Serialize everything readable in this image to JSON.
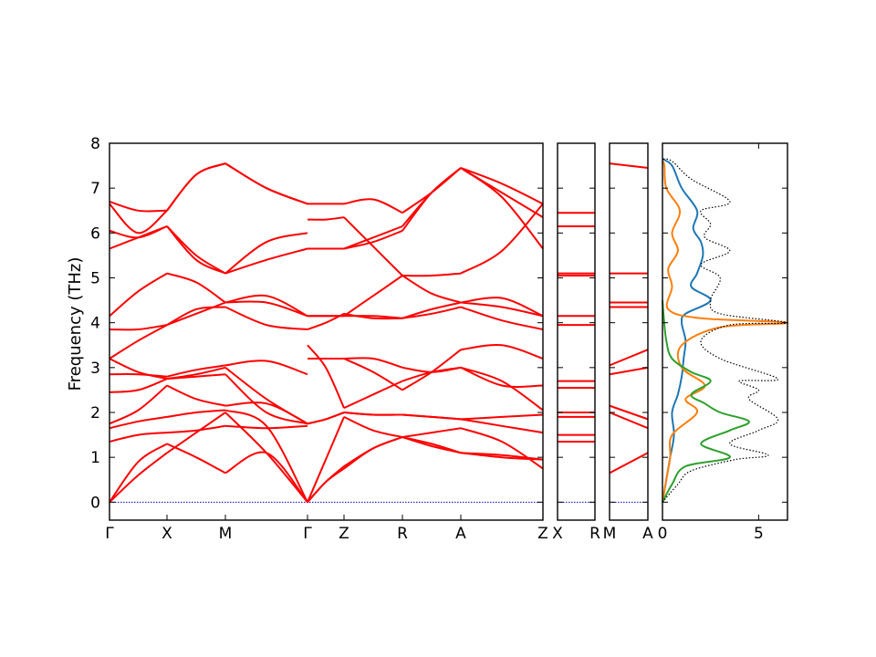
{
  "chart_data": {
    "type": "line",
    "ylabel": "Frequency (THz)",
    "ylim": [
      -0.4,
      8
    ],
    "yticks": [
      "0",
      "1",
      "2",
      "3",
      "4",
      "5",
      "6",
      "7",
      "8"
    ],
    "grid": false,
    "band_color": "#ff0000",
    "zero_line_color": "#0000cc",
    "panels": [
      {
        "name": "main-path",
        "xlabels": [
          "Γ",
          "X",
          "M",
          "Γ",
          "Z",
          "R",
          "A",
          "Z"
        ],
        "segments": [
          {
            "from": "Γ",
            "to": "X",
            "bands": [
              [
                0,
                0.9,
                1.3
              ],
              [
                0,
                0.6,
                1.1
              ],
              [
                1.35,
                1.5,
                1.55
              ],
              [
                1.65,
                1.8,
                1.9
              ],
              [
                1.75,
                2.05,
                2.6
              ],
              [
                2.45,
                2.5,
                2.75
              ],
              [
                2.85,
                2.85,
                2.8
              ],
              [
                3.2,
                2.9,
                2.75
              ],
              [
                3.2,
                3.6,
                3.95
              ],
              [
                3.85,
                3.85,
                3.95
              ],
              [
                4.15,
                4.7,
                5.1
              ],
              [
                5.65,
                5.9,
                6.15
              ],
              [
                6.05,
                5.9,
                6.15
              ],
              [
                6.65,
                6.0,
                6.5
              ],
              [
                6.7,
                6.5,
                6.5
              ]
            ]
          },
          {
            "from": "X",
            "to": "M",
            "bands": [
              [
                1.3,
                1.0,
                0.65
              ],
              [
                1.1,
                1.55,
                2.0
              ],
              [
                1.55,
                1.6,
                1.7
              ],
              [
                1.9,
                2.0,
                2.05
              ],
              [
                2.6,
                2.3,
                2.15
              ],
              [
                2.75,
                2.8,
                2.85
              ],
              [
                2.8,
                2.95,
                3.05
              ],
              [
                2.75,
                2.85,
                3.0
              ],
              [
                3.95,
                4.3,
                4.35
              ],
              [
                3.95,
                4.2,
                4.45
              ],
              [
                5.1,
                4.9,
                4.45
              ],
              [
                6.15,
                5.4,
                5.1
              ],
              [
                6.15,
                5.5,
                5.1
              ],
              [
                6.5,
                7.3,
                7.55
              ],
              [
                6.5,
                7.3,
                7.55
              ]
            ]
          },
          {
            "from": "M",
            "to": "Γ",
            "bands": [
              [
                0.65,
                1.1,
                0
              ],
              [
                2.0,
                1.1,
                0
              ],
              [
                1.7,
                1.65,
                1.7
              ],
              [
                2.05,
                1.7,
                0
              ],
              [
                2.15,
                2.2,
                1.75
              ],
              [
                2.85,
                2.0,
                1.75
              ],
              [
                3.05,
                3.15,
                2.85
              ],
              [
                3.0,
                2.3,
                1.75
              ],
              [
                4.35,
                3.95,
                3.85
              ],
              [
                4.45,
                4.45,
                4.15
              ],
              [
                4.45,
                4.6,
                4.15
              ],
              [
                5.1,
                5.8,
                6.0
              ],
              [
                5.1,
                5.4,
                5.65
              ],
              [
                7.55,
                7.0,
                6.65
              ],
              [
                7.55,
                7.0,
                6.65
              ]
            ]
          },
          {
            "from": "Γ",
            "to": "Z",
            "bands": [
              [
                0,
                0.45,
                0.75
              ],
              [
                0,
                0.45,
                0.8
              ],
              [
                0,
                0.95,
                1.9
              ],
              [
                1.75,
                1.85,
                2.0
              ],
              [
                1.75,
                1.85,
                2.0
              ],
              [
                3.5,
                3.0,
                2.1
              ],
              [
                3.2,
                3.2,
                3.2
              ],
              [
                3.2,
                3.2,
                3.2
              ],
              [
                3.85,
                4.0,
                4.2
              ],
              [
                4.15,
                4.15,
                4.15
              ],
              [
                4.15,
                4.15,
                4.15
              ],
              [
                5.65,
                5.65,
                5.65
              ],
              [
                5.65,
                5.65,
                5.65
              ],
              [
                6.3,
                6.3,
                6.35
              ],
              [
                6.65,
                6.65,
                6.65
              ]
            ]
          },
          {
            "from": "Z",
            "to": "R",
            "bands": [
              [
                0.75,
                1.2,
                1.45
              ],
              [
                0.8,
                1.2,
                1.45
              ],
              [
                1.9,
                1.6,
                1.45
              ],
              [
                2.0,
                1.95,
                1.95
              ],
              [
                2.0,
                1.95,
                1.95
              ],
              [
                2.1,
                2.4,
                2.7
              ],
              [
                3.2,
                2.9,
                2.5
              ],
              [
                3.2,
                3.2,
                3.0
              ],
              [
                4.2,
                4.1,
                4.1
              ],
              [
                4.15,
                4.15,
                4.1
              ],
              [
                4.15,
                4.6,
                5.05
              ],
              [
                5.65,
                5.9,
                6.15
              ],
              [
                5.65,
                5.8,
                6.05
              ],
              [
                6.35,
                5.7,
                5.05
              ],
              [
                6.65,
                6.75,
                6.45
              ]
            ]
          },
          {
            "from": "R",
            "to": "A",
            "bands": [
              [
                1.45,
                1.25,
                1.1
              ],
              [
                1.45,
                1.55,
                1.65
              ],
              [
                1.45,
                1.3,
                1.1
              ],
              [
                1.95,
                1.9,
                1.85
              ],
              [
                1.95,
                1.9,
                1.85
              ],
              [
                2.7,
                2.9,
                3.0
              ],
              [
                2.5,
                2.9,
                3.4
              ],
              [
                3.0,
                2.9,
                3.0
              ],
              [
                4.1,
                4.2,
                4.35
              ],
              [
                4.1,
                4.3,
                4.45
              ],
              [
                5.05,
                4.65,
                4.45
              ],
              [
                6.15,
                6.9,
                7.45
              ],
              [
                6.05,
                6.9,
                7.45
              ],
              [
                5.05,
                5.05,
                5.1
              ],
              [
                6.45,
                6.9,
                7.45
              ]
            ]
          },
          {
            "from": "A",
            "to": "Z",
            "bands": [
              [
                1.1,
                1.05,
                0.95
              ],
              [
                1.65,
                1.35,
                0.75
              ],
              [
                1.1,
                1.0,
                0.95
              ],
              [
                1.85,
                1.9,
                1.95
              ],
              [
                1.85,
                1.7,
                1.55
              ],
              [
                3.0,
                2.7,
                2.05
              ],
              [
                3.4,
                3.5,
                3.2
              ],
              [
                3.0,
                2.6,
                2.6
              ],
              [
                4.35,
                4.05,
                3.85
              ],
              [
                4.45,
                4.35,
                4.15
              ],
              [
                4.45,
                4.55,
                4.15
              ],
              [
                7.45,
                6.8,
                5.65
              ],
              [
                7.45,
                6.9,
                6.35
              ],
              [
                5.1,
                5.6,
                6.65
              ],
              [
                7.45,
                7.1,
                6.65
              ]
            ]
          }
        ]
      },
      {
        "name": "x-r-path",
        "xlabels": [
          "X",
          "R"
        ],
        "bands": [
          1.35,
          1.5,
          1.9,
          2.0,
          2.55,
          2.7,
          3.95,
          4.15,
          5.05,
          5.1,
          6.15,
          6.45
        ]
      },
      {
        "name": "m-a-path",
        "xlabels": [
          "M",
          "A"
        ],
        "bands_from_to": [
          [
            0.65,
            1.1
          ],
          [
            2.0,
            1.65
          ],
          [
            2.15,
            1.85
          ],
          [
            2.85,
            3.0
          ],
          [
            3.05,
            3.4
          ],
          [
            4.35,
            4.35
          ],
          [
            4.45,
            4.45
          ],
          [
            5.1,
            5.1
          ],
          [
            7.55,
            7.45
          ]
        ]
      },
      {
        "name": "dos",
        "xlabels": [
          "0",
          "5"
        ],
        "xlim": [
          0,
          6.5
        ],
        "series": [
          {
            "color": "#1f77b4",
            "points": [
              [
                0,
                0
              ],
              [
                0.2,
                0.5
              ],
              [
                0.4,
                1.0
              ],
              [
                0.6,
                1.5
              ],
              [
                0.5,
                2.0
              ],
              [
                0.8,
                2.4
              ],
              [
                1.0,
                2.8
              ],
              [
                1.1,
                3.2
              ],
              [
                1.2,
                3.6
              ],
              [
                1.0,
                4.0
              ],
              [
                1.2,
                4.2
              ],
              [
                2.5,
                4.5
              ],
              [
                1.5,
                4.8
              ],
              [
                1.8,
                5.1
              ],
              [
                2.1,
                5.5
              ],
              [
                2.0,
                5.8
              ],
              [
                1.6,
                6.1
              ],
              [
                1.8,
                6.5
              ],
              [
                1.0,
                7.0
              ],
              [
                0.5,
                7.5
              ],
              [
                0,
                7.65
              ]
            ]
          },
          {
            "color": "#ff7f0e",
            "points": [
              [
                0,
                0
              ],
              [
                0.2,
                0.5
              ],
              [
                0.4,
                1.0
              ],
              [
                0.5,
                1.5
              ],
              [
                1.8,
                2.0
              ],
              [
                1.2,
                2.3
              ],
              [
                2.2,
                2.6
              ],
              [
                1.0,
                3.0
              ],
              [
                1.0,
                3.5
              ],
              [
                3.0,
                3.9
              ],
              [
                6.5,
                4.0
              ],
              [
                2.0,
                4.1
              ],
              [
                0.3,
                4.3
              ],
              [
                0.5,
                4.8
              ],
              [
                0.3,
                5.2
              ],
              [
                0.8,
                5.6
              ],
              [
                0.5,
                6.0
              ],
              [
                0.9,
                6.5
              ],
              [
                0.2,
                7.0
              ],
              [
                0.1,
                7.5
              ],
              [
                0,
                7.6
              ]
            ]
          },
          {
            "color": "#2ca02c",
            "points": [
              [
                0,
                0
              ],
              [
                0.5,
                0.4
              ],
              [
                1.2,
                0.8
              ],
              [
                3.5,
                1.0
              ],
              [
                2.0,
                1.3
              ],
              [
                3.5,
                1.6
              ],
              [
                4.5,
                1.8
              ],
              [
                3.0,
                2.0
              ],
              [
                2.2,
                2.2
              ],
              [
                1.5,
                2.4
              ],
              [
                2.5,
                2.7
              ],
              [
                1.5,
                2.9
              ],
              [
                0.5,
                3.2
              ],
              [
                0.2,
                3.6
              ],
              [
                0.05,
                4.2
              ],
              [
                0,
                4.5
              ]
            ]
          },
          {
            "color": "#000000",
            "dotted": true,
            "points": [
              [
                0,
                0
              ],
              [
                0.8,
                0.4
              ],
              [
                1.5,
                0.7
              ],
              [
                3.8,
                0.95
              ],
              [
                5.5,
                1.05
              ],
              [
                3.5,
                1.3
              ],
              [
                5.0,
                1.6
              ],
              [
                6.0,
                1.85
              ],
              [
                4.5,
                2.3
              ],
              [
                5.0,
                2.5
              ],
              [
                4.0,
                2.7
              ],
              [
                6.0,
                2.75
              ],
              [
                3.0,
                3.2
              ],
              [
                2.0,
                3.6
              ],
              [
                3.5,
                3.95
              ],
              [
                6.5,
                4.0
              ],
              [
                3.0,
                4.2
              ],
              [
                2.5,
                4.5
              ],
              [
                3.0,
                5.0
              ],
              [
                2.0,
                5.3
              ],
              [
                3.5,
                5.6
              ],
              [
                2.2,
                5.9
              ],
              [
                2.5,
                6.2
              ],
              [
                2.0,
                6.5
              ],
              [
                3.5,
                6.7
              ],
              [
                1.5,
                7.2
              ],
              [
                0.5,
                7.6
              ],
              [
                0,
                7.65
              ]
            ]
          }
        ]
      }
    ]
  }
}
